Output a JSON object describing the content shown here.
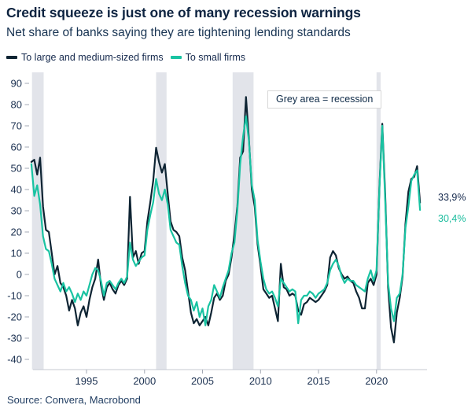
{
  "header": {
    "title": "Credit squeeze is just one of many recession warnings",
    "subtitle": "Net share of banks saying they are tightening lending standards"
  },
  "annotation": "Grey area = recession",
  "source": "Source: Convera, Macrobond",
  "colors": {
    "navy": "#0e2433",
    "teal": "#19c3a2",
    "axis_text": "#1b3050",
    "recession_band": "#e2e4ea",
    "axis_line": "#c5c9d1",
    "tick": "#a3a8b4"
  },
  "chart_data": {
    "type": "line",
    "title": "Credit squeeze is just one of many recession warnings",
    "subtitle": "Net share of banks saying they are tightening lending standards",
    "x_frequency": "quarterly",
    "x_start": 1990.25,
    "x_step": 0.25,
    "x_end": 2023.75,
    "xticks": [
      1995,
      2000,
      2005,
      2010,
      2015,
      2020
    ],
    "yticks": [
      90,
      80,
      70,
      60,
      50,
      40,
      30,
      20,
      10,
      0,
      -10,
      -20,
      -30,
      -40
    ],
    "ylim": [
      -44,
      95
    ],
    "xlim": [
      1990.2,
      2024.4
    ],
    "grid": false,
    "legend_position": "top-left",
    "annotation": "Grey area = recession",
    "recessions": [
      {
        "from": 1990.3,
        "to": 1991.3
      },
      {
        "from": 2001.0,
        "to": 2001.9
      },
      {
        "from": 2007.6,
        "to": 2009.4
      },
      {
        "from": 2020.0,
        "to": 2020.35
      }
    ],
    "series": [
      {
        "name": "To large and medium-sized firms",
        "color": "#0e2433",
        "end_label": "33,9%",
        "end_value": 33.9,
        "values": [
          53,
          54,
          47,
          55,
          32,
          21,
          20,
          10,
          0,
          4,
          -4,
          -6,
          -10,
          -17,
          -12,
          -16,
          -24,
          -18,
          -15,
          -20,
          -12,
          -6,
          -2,
          7,
          -5,
          -12,
          -6,
          -4,
          -7,
          -9,
          -5,
          -3,
          -5,
          -2,
          36.6,
          8,
          11,
          5,
          10,
          11,
          25,
          34,
          44,
          59.7,
          53,
          48,
          52,
          38,
          25,
          21,
          20,
          18,
          8,
          2,
          -8,
          -18,
          -23,
          -21,
          -24,
          -22,
          -20,
          -24,
          -18,
          -11,
          -9,
          -12,
          -10,
          -3,
          0,
          8,
          19,
          32,
          55,
          58,
          83.6,
          64,
          40,
          32,
          14,
          4,
          -7,
          -9,
          -11,
          -10,
          -16,
          -22,
          5,
          -6,
          -7,
          -10,
          -9,
          -10,
          -17,
          -19,
          -14,
          -13,
          -11,
          -12,
          -13,
          -12,
          -10,
          -8,
          -5,
          8,
          11,
          9,
          3,
          0,
          -2,
          -1,
          -3,
          -4,
          -8,
          -11,
          -16,
          -16,
          -4,
          -2,
          -5,
          0,
          41,
          71,
          38,
          -6,
          -25,
          -32,
          -18,
          -11,
          -1,
          24,
          39,
          45,
          46,
          51,
          33.9
        ]
      },
      {
        "name": "To small firms",
        "color": "#19c3a2",
        "end_label": "30,4%",
        "end_value": 30.4,
        "values": [
          52,
          37,
          42,
          33,
          18,
          12,
          11,
          5,
          -2,
          -5,
          -8,
          -4,
          -8,
          -6,
          -9,
          -13,
          -9,
          -12,
          -8,
          -10,
          -5,
          0,
          3,
          2,
          -3,
          -10,
          -4,
          -3,
          -5,
          -7,
          -4,
          -2,
          -4,
          -1,
          15,
          7,
          4,
          6,
          8,
          9,
          21,
          28,
          34,
          45,
          38,
          35,
          40,
          33,
          21,
          18,
          15,
          14,
          4,
          -4,
          -10,
          -12,
          -17,
          -13,
          -20,
          -16,
          -24,
          -15,
          -12,
          -5,
          -8,
          -11,
          -6,
          -2,
          2,
          10,
          15,
          30,
          52,
          65,
          74.5,
          63,
          42,
          35,
          16,
          6,
          -2,
          -7,
          -9,
          -8,
          -11,
          -15,
          -2,
          -4,
          -6,
          -8,
          -7,
          -8,
          -23,
          -12,
          -10,
          -10,
          -8,
          -9,
          -11,
          -9,
          -8,
          -7,
          -4,
          2,
          5,
          7,
          4,
          -1,
          -4,
          -2,
          -3,
          -3,
          -5,
          -6,
          -7,
          -8,
          -2,
          2,
          -3,
          2,
          40,
          70,
          35,
          -4,
          -16,
          -22,
          -11,
          -9,
          0,
          22,
          32,
          44,
          47,
          49,
          30.4
        ]
      }
    ]
  }
}
